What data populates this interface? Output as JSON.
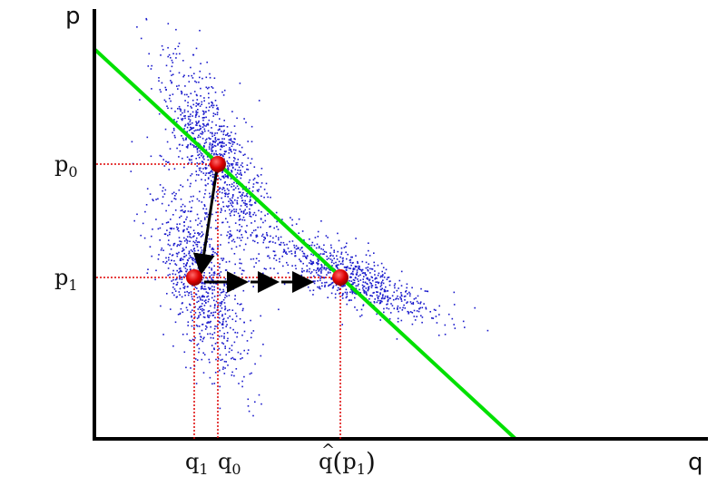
{
  "axes": {
    "x_label": "q",
    "y_label": "p"
  },
  "prices": [
    {
      "main": "p",
      "sub": "0"
    },
    {
      "main": "p",
      "sub": "1"
    }
  ],
  "quantities": [
    {
      "main": "q",
      "sub": "1"
    },
    {
      "main": "q",
      "sub": "0"
    }
  ],
  "prediction_label": {
    "main": "q",
    "accent": "^",
    "open": "(",
    "arg_main": "p",
    "arg_sub": "1",
    "close": ")"
  },
  "colors": {
    "axis": "#000000",
    "demand_line": "#00e000",
    "scatter": "#1a1acc",
    "point": "#dd0000",
    "guide": "#dd0000",
    "arrow": "#000000"
  },
  "icons": {
    "point": "red-dot-icon",
    "arrow": "arrowhead-icon"
  }
}
